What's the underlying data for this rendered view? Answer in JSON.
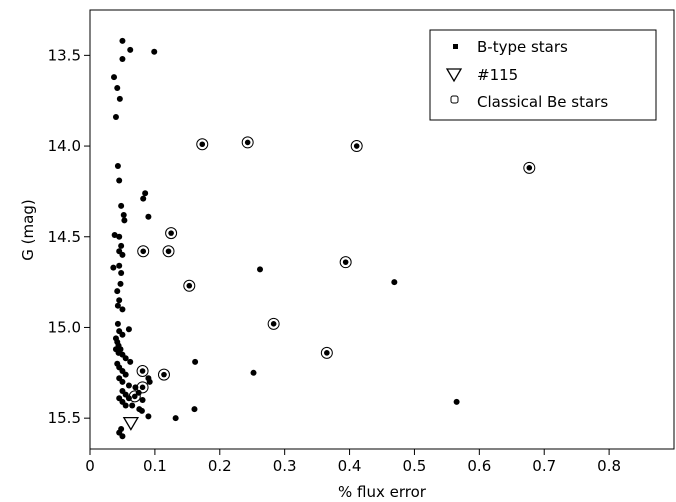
{
  "chart_data": {
    "type": "scatter",
    "xlabel": "% flux error",
    "ylabel": "G (mag)",
    "xlim": [
      0,
      0.9
    ],
    "ylim": [
      15.67,
      13.25
    ],
    "y_inverted": true,
    "grid": false,
    "legend_position": "top-right",
    "x_ticks": [
      {
        "value": 0,
        "label": "0"
      },
      {
        "value": 0.1,
        "label": "0.1"
      },
      {
        "value": 0.2,
        "label": "0.2"
      },
      {
        "value": 0.3,
        "label": "0.3"
      },
      {
        "value": 0.4,
        "label": "0.4"
      },
      {
        "value": 0.5,
        "label": "0.5"
      },
      {
        "value": 0.6,
        "label": "0.6"
      },
      {
        "value": 0.7,
        "label": "0.7"
      },
      {
        "value": 0.8,
        "label": "0.8"
      }
    ],
    "y_ticks": [
      {
        "value": 13.5,
        "label": "13.5"
      },
      {
        "value": 14.0,
        "label": "14.0"
      },
      {
        "value": 14.5,
        "label": "14.5"
      },
      {
        "value": 15.0,
        "label": "15.0"
      },
      {
        "value": 15.5,
        "label": "15.5"
      }
    ],
    "series": [
      {
        "name": "B-type stars",
        "marker": "dot",
        "color": "#000000",
        "x": [
          0.05,
          0.062,
          0.05,
          0.037,
          0.042,
          0.046,
          0.04,
          0.099,
          0.043,
          0.045,
          0.085,
          0.082,
          0.048,
          0.052,
          0.053,
          0.09,
          0.038,
          0.045,
          0.048,
          0.05,
          0.045,
          0.036,
          0.045,
          0.048,
          0.042,
          0.047,
          0.045,
          0.043,
          0.05,
          0.043,
          0.06,
          0.045,
          0.05,
          0.04,
          0.042,
          0.044,
          0.047,
          0.04,
          0.044,
          0.05,
          0.055,
          0.062,
          0.042,
          0.045,
          0.05,
          0.055,
          0.045,
          0.05,
          0.06,
          0.07,
          0.05,
          0.055,
          0.06,
          0.045,
          0.05,
          0.055,
          0.065,
          0.075,
          0.09,
          0.092,
          0.048,
          0.045,
          0.05,
          0.08,
          0.09,
          0.162,
          0.262,
          0.469,
          0.252,
          0.161,
          0.132,
          0.565,
          0.081,
          0.076
        ],
        "y": [
          13.42,
          13.47,
          13.52,
          13.62,
          13.68,
          13.74,
          13.84,
          13.48,
          14.11,
          14.19,
          14.26,
          14.29,
          14.33,
          14.38,
          14.41,
          14.39,
          14.49,
          14.5,
          14.55,
          14.6,
          14.58,
          14.67,
          14.66,
          14.7,
          14.8,
          14.76,
          14.85,
          14.88,
          14.9,
          14.98,
          15.01,
          15.02,
          15.04,
          15.06,
          15.08,
          15.1,
          15.12,
          15.12,
          15.14,
          15.15,
          15.17,
          15.19,
          15.2,
          15.22,
          15.24,
          15.26,
          15.28,
          15.3,
          15.32,
          15.33,
          15.35,
          15.37,
          15.39,
          15.39,
          15.41,
          15.43,
          15.43,
          15.36,
          15.28,
          15.3,
          15.56,
          15.58,
          15.6,
          15.46,
          15.49,
          15.19,
          14.68,
          14.75,
          15.25,
          15.45,
          15.5,
          15.41,
          15.4,
          15.45
        ]
      },
      {
        "name": "#115",
        "marker": "triangle-down",
        "color": "#000000",
        "x": [
          0.063
        ],
        "y": [
          15.53
        ]
      },
      {
        "name": "Classical Be stars",
        "marker": "ring",
        "color": "#000000",
        "x": [
          0.173,
          0.243,
          0.411,
          0.677,
          0.125,
          0.082,
          0.121,
          0.394,
          0.153,
          0.283,
          0.365,
          0.081,
          0.114,
          0.069,
          0.081
        ],
        "y": [
          13.99,
          13.98,
          14.0,
          14.12,
          14.48,
          14.58,
          14.58,
          14.64,
          14.77,
          14.98,
          15.14,
          15.24,
          15.26,
          15.38,
          15.33
        ]
      }
    ]
  }
}
